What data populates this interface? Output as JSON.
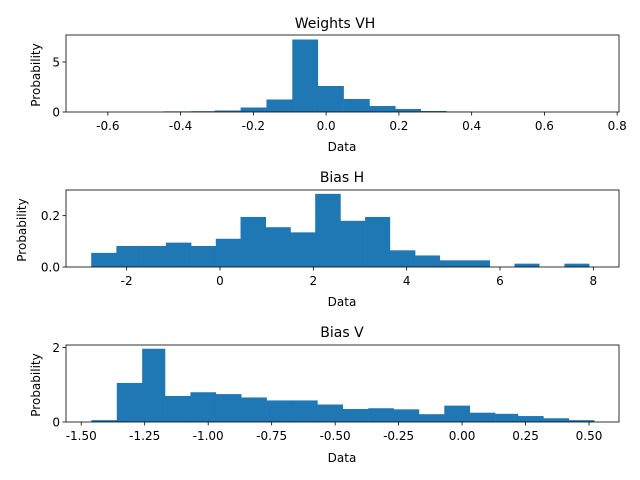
{
  "chart_data": [
    {
      "type": "bar",
      "histogram": true,
      "title": "Weights VH",
      "xlabel": "Data",
      "ylabel": "Probability",
      "color": "#1f77b4",
      "xlim": [
        -0.715,
        0.805
      ],
      "ylim": [
        0,
        7.7
      ],
      "xticks": [
        "-0.6",
        "-0.4",
        "-0.2",
        "0.0",
        "0.2",
        "0.4",
        "0.6",
        "0.8"
      ],
      "xtick_values": [
        -0.6,
        -0.4,
        -0.2,
        0.0,
        0.2,
        0.4,
        0.6,
        0.8
      ],
      "yticks": [
        "0",
        "5"
      ],
      "ytick_values": [
        0,
        5
      ],
      "bin_edges": [
        -0.447,
        -0.37,
        -0.306,
        -0.235,
        -0.164,
        -0.093,
        -0.023,
        0.048,
        0.119,
        0.19,
        0.26,
        0.33,
        0.4
      ],
      "values": [
        0.06,
        0.08,
        0.15,
        0.45,
        1.25,
        7.25,
        2.6,
        1.3,
        0.6,
        0.3,
        0.1,
        0.04
      ]
    },
    {
      "type": "bar",
      "histogram": true,
      "title": "Bias H",
      "xlabel": "Data",
      "ylabel": "Probability",
      "color": "#1f77b4",
      "xlim": [
        -3.3,
        8.55
      ],
      "ylim": [
        0,
        0.3
      ],
      "xticks": [
        "-2",
        "0",
        "2",
        "4",
        "6",
        "8"
      ],
      "xtick_values": [
        -2,
        0,
        2,
        4,
        6,
        8
      ],
      "yticks": [
        "0.0",
        "0.2"
      ],
      "ytick_values": [
        0.0,
        0.2
      ],
      "bin_edges": [
        -2.76,
        -2.22,
        -1.69,
        -1.16,
        -0.62,
        -0.09,
        0.44,
        0.98,
        1.51,
        2.04,
        2.58,
        3.11,
        3.64,
        4.18,
        4.71,
        5.24,
        5.78,
        6.31,
        6.84,
        7.38,
        7.91
      ],
      "values": [
        0.055,
        0.082,
        0.082,
        0.095,
        0.082,
        0.11,
        0.195,
        0.155,
        0.135,
        0.285,
        0.18,
        0.195,
        0.065,
        0.045,
        0.026,
        0.026,
        0.0,
        0.013,
        0.0,
        0.013
      ]
    },
    {
      "type": "bar",
      "histogram": true,
      "title": "Bias V",
      "xlabel": "Data",
      "ylabel": "Probability",
      "color": "#1f77b4",
      "xlim": [
        -1.56,
        0.618
      ],
      "ylim": [
        0,
        2.07
      ],
      "xticks": [
        "-1.50",
        "-1.25",
        "-1.00",
        "-0.75",
        "-0.50",
        "-0.25",
        "0.00",
        "0.25",
        "0.50"
      ],
      "xtick_values": [
        -1.5,
        -1.25,
        -1.0,
        -0.75,
        -0.5,
        -0.25,
        0.0,
        0.25,
        0.5
      ],
      "yticks": [
        "0",
        "2"
      ],
      "ytick_values": [
        0,
        2
      ],
      "bin_edges": [
        -1.46,
        -1.36,
        -1.26,
        -1.17,
        -1.07,
        -0.97,
        -0.87,
        -0.77,
        -0.67,
        -0.57,
        -0.47,
        -0.37,
        -0.27,
        -0.17,
        -0.07,
        0.03,
        0.13,
        0.22,
        0.32,
        0.42,
        0.52
      ],
      "values": [
        0.05,
        1.05,
        1.97,
        0.7,
        0.8,
        0.75,
        0.66,
        0.58,
        0.58,
        0.47,
        0.35,
        0.37,
        0.34,
        0.21,
        0.44,
        0.25,
        0.22,
        0.16,
        0.1,
        0.05
      ]
    }
  ]
}
